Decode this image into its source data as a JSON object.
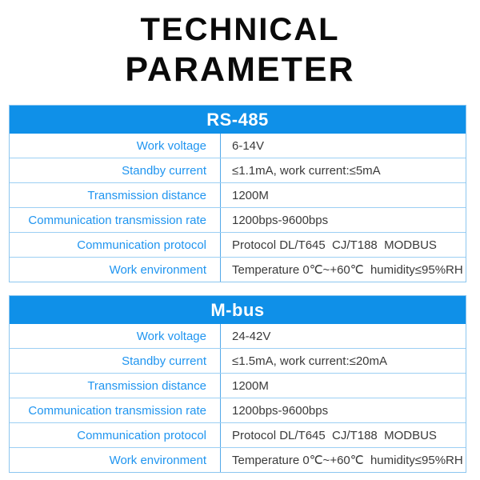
{
  "page": {
    "title_line1": "TECHNICAL",
    "title_line2": "PARAMETER"
  },
  "colors": {
    "header_blue": "#0f90e8",
    "label_blue": "#2095f0",
    "divider_blue": "#54a9e8",
    "row_line_blue": "#9ccff3",
    "outer_border_blue": "#8cc6f0",
    "value_text": "#3a3a3a",
    "title_text": "#0a0a0a"
  },
  "tables": [
    {
      "header": "RS-485",
      "rows": [
        {
          "label": "Work voltage",
          "value": "6-14V"
        },
        {
          "label": "Standby current",
          "value": "≤1.1mA, work current:≤5mA"
        },
        {
          "label": "Transmission distance",
          "value": "1200M"
        },
        {
          "label": "Communication transmission rate",
          "value": "1200bps-9600bps"
        },
        {
          "label": "Communication protocol",
          "value": "Protocol DL/T645  CJ/T188  MODBUS"
        },
        {
          "label": "Work environment",
          "value": "Temperature 0℃~+60℃  humidity≤95%RH"
        }
      ]
    },
    {
      "header": "M-bus",
      "rows": [
        {
          "label": "Work voltage",
          "value": "24-42V"
        },
        {
          "label": "Standby current",
          "value": "≤1.5mA, work current:≤20mA"
        },
        {
          "label": "Transmission distance",
          "value": "1200M"
        },
        {
          "label": "Communication transmission rate",
          "value": "1200bps-9600bps"
        },
        {
          "label": "Communication protocol",
          "value": "Protocol DL/T645  CJ/T188  MODBUS"
        },
        {
          "label": "Work environment",
          "value": "Temperature 0℃~+60℃  humidity≤95%RH"
        }
      ]
    }
  ]
}
